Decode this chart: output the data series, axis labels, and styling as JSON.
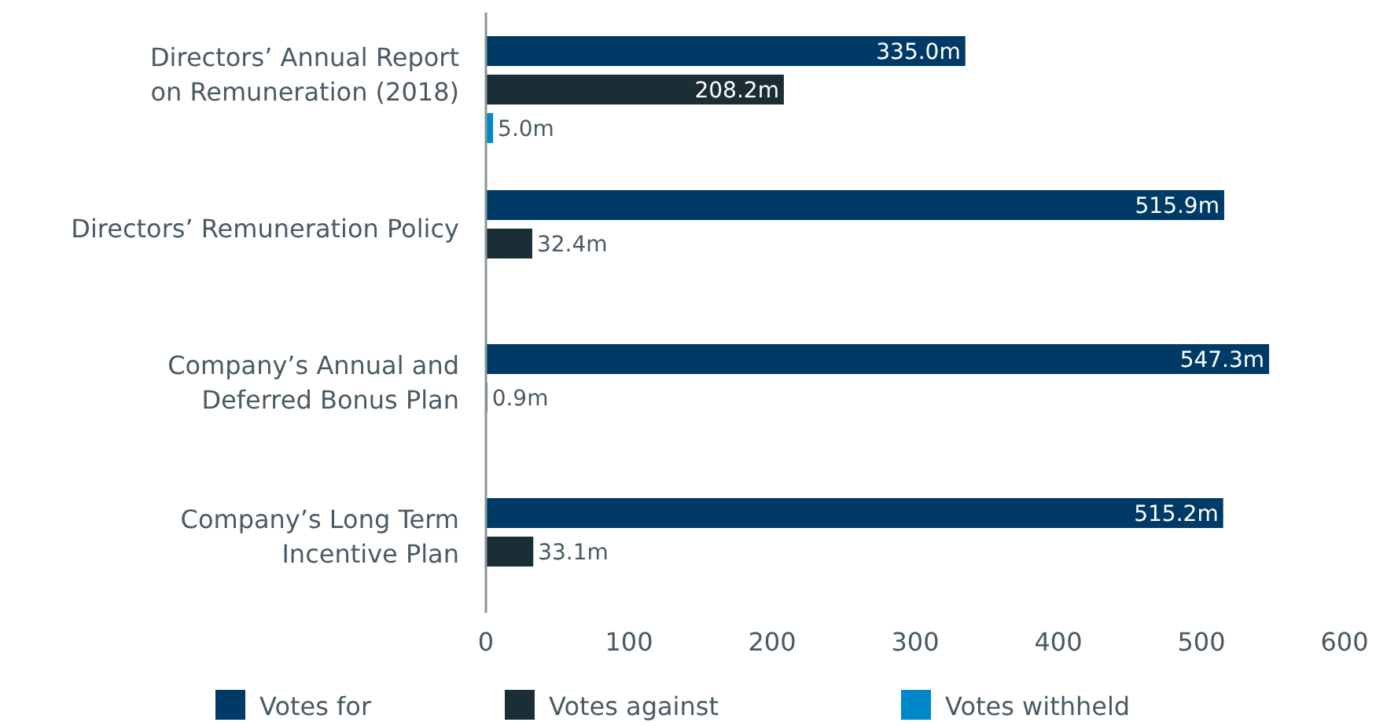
{
  "chart_data": {
    "type": "bar",
    "orientation": "horizontal",
    "categories": [
      "Directors’ Annual Report\non Remuneration (2018)",
      "Directors’ Remuneration Policy",
      "Company’s Annual and\nDeferred Bonus Plan",
      "Company’s Long Term\nIncentive Plan"
    ],
    "series": [
      {
        "name": "Votes for",
        "color": "#003a66",
        "values": [
          335.0,
          515.9,
          547.3,
          515.2
        ],
        "value_labels": [
          "335.0m",
          "515.9m",
          "547.3m",
          "515.2m"
        ]
      },
      {
        "name": "Votes against",
        "color": "#1b2e36",
        "values": [
          208.2,
          32.4,
          0.9,
          33.1
        ],
        "value_labels": [
          "208.2m",
          "32.4m",
          "0.9m",
          "33.1m"
        ]
      },
      {
        "name": "Votes withheld",
        "color": "#0088cc",
        "values": [
          5.0,
          null,
          null,
          null
        ],
        "value_labels": [
          "5.0m",
          null,
          null,
          null
        ]
      }
    ],
    "xlim": [
      0,
      600
    ],
    "xticks": [
      0,
      100,
      200,
      300,
      400,
      500,
      600
    ],
    "grid": false,
    "legend": "bottom"
  }
}
